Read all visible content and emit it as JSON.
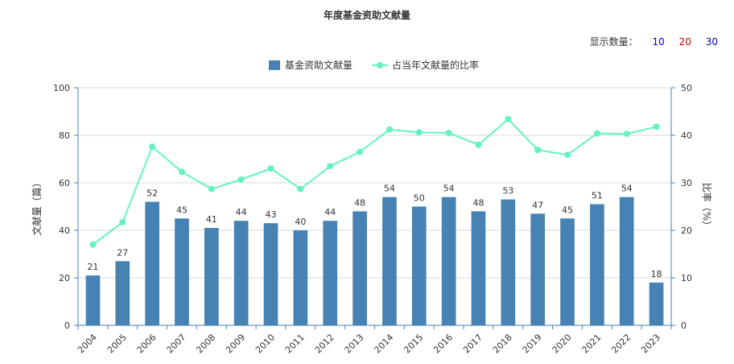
{
  "header": {
    "title": "年度基金资助文献量",
    "count_label": "显示数量：",
    "count_options": [
      "10",
      "20",
      "30"
    ]
  },
  "chart_data": {
    "type": "bar",
    "categories": [
      "2004",
      "2005",
      "2006",
      "2007",
      "2008",
      "2009",
      "2010",
      "2011",
      "2012",
      "2013",
      "2014",
      "2015",
      "2016",
      "2017",
      "2018",
      "2019",
      "2020",
      "2021",
      "2022",
      "2023"
    ],
    "series": [
      {
        "name": "基金资助文献量",
        "type": "bar",
        "axis": "left",
        "color": "#4682b4",
        "values": [
          21,
          27,
          52,
          45,
          41,
          44,
          43,
          40,
          44,
          48,
          54,
          50,
          54,
          48,
          53,
          47,
          45,
          51,
          54,
          18
        ]
      },
      {
        "name": "占当年文献量的比率",
        "type": "line",
        "axis": "right",
        "color": "#66f2c0",
        "values": [
          17,
          21.7,
          37.6,
          32.3,
          28.7,
          30.7,
          33,
          28.7,
          33.5,
          36.5,
          41.2,
          40.6,
          40.5,
          38,
          43.4,
          36.9,
          35.9,
          40.4,
          40.3,
          41.8
        ]
      }
    ],
    "ylabel": "文献量（篇）",
    "ylabel_right": "比率（%）",
    "ylim": [
      0,
      100
    ],
    "ylim_right": [
      0,
      50
    ],
    "yticks": [
      0,
      20,
      40,
      60,
      80,
      100
    ],
    "yticks_right": [
      0,
      10,
      20,
      30,
      40,
      50
    ],
    "legend": "top-center",
    "grid": true
  }
}
